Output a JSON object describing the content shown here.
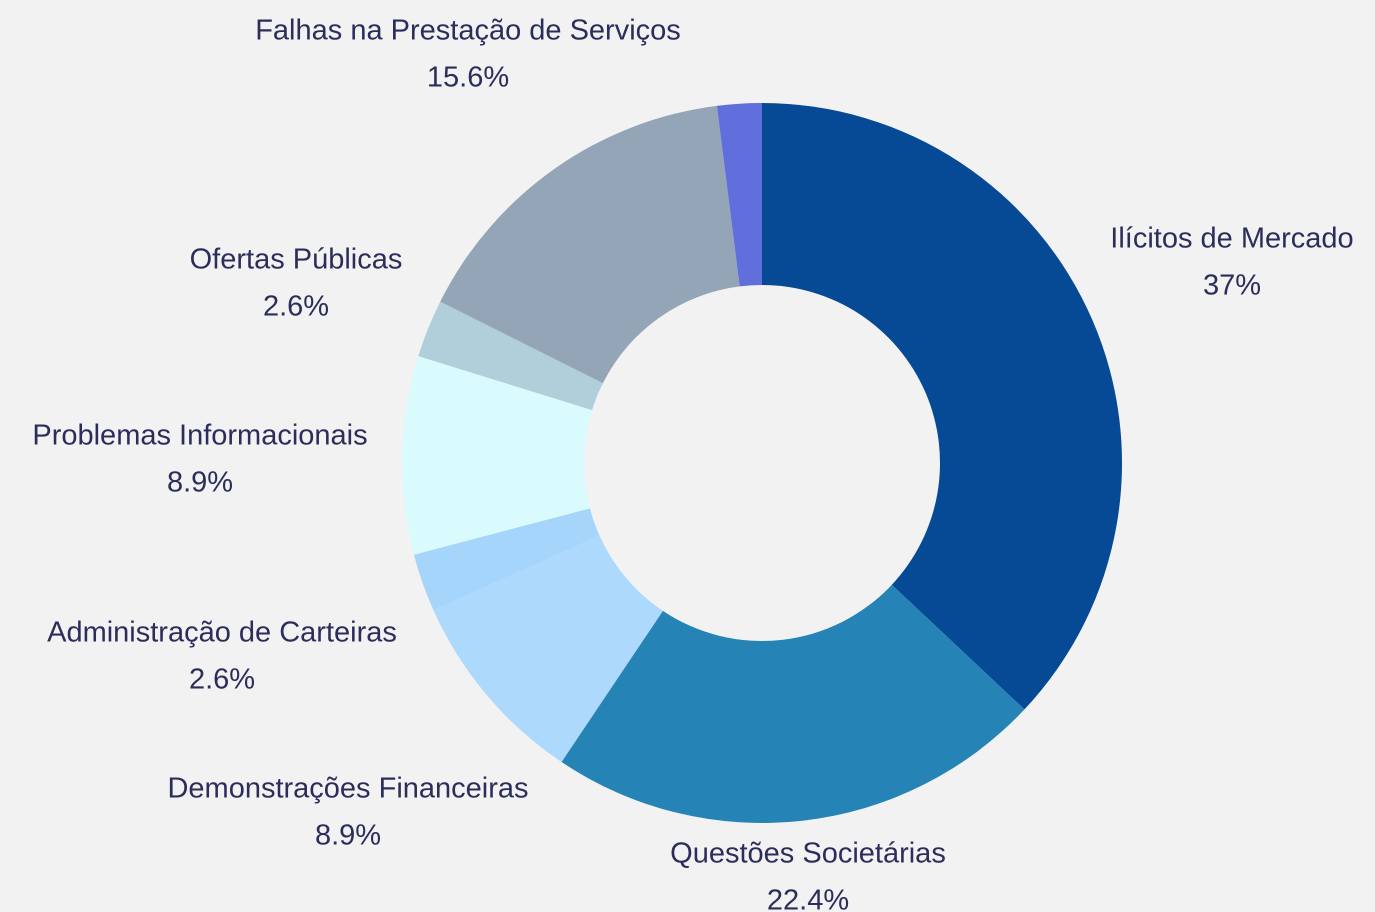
{
  "chart_data": {
    "type": "donut",
    "categories": [
      "Ilícitos de Mercado",
      "Questões Societárias",
      "Demonstrações Financeiras",
      "Administração de Carteiras",
      "Problemas Informacionais",
      "Ofertas Públicas",
      "Falhas na Prestação de Serviços",
      null
    ],
    "values": [
      37,
      22.4,
      8.9,
      2.6,
      8.9,
      2.6,
      15.6,
      2
    ],
    "value_labels": [
      "37%",
      "22.4%",
      "8.9%",
      "2.6%",
      "8.9%",
      "2.6%",
      "15.6%",
      null
    ],
    "colors": [
      "#064a96",
      "#2584b5",
      "#acd9fc",
      "#a6d5fb",
      "#d9fbfe",
      "#b0cfdb",
      "#93a5b7",
      "#616fdc"
    ]
  }
}
